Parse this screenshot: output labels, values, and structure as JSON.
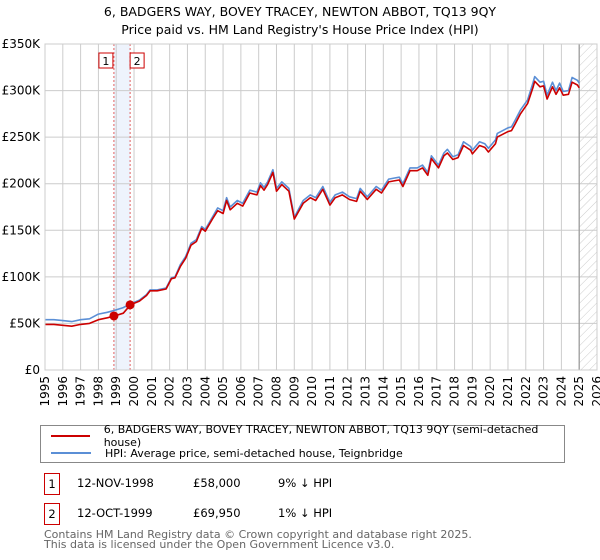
{
  "chart_data": {
    "type": "line",
    "title": "6, BADGERS WAY, BOVEY TRACEY, NEWTON ABBOT, TQ13 9QY",
    "subtitle": "Price paid vs. HM Land Registry's House Price Index (HPI)",
    "xlim": [
      1995,
      2026
    ],
    "ylim": [
      0,
      350000
    ],
    "yticks": [
      0,
      50000,
      100000,
      150000,
      200000,
      250000,
      300000,
      350000
    ],
    "ytick_labels": [
      "£0",
      "£50K",
      "£100K",
      "£150K",
      "£200K",
      "£250K",
      "£300K",
      "£350K"
    ],
    "xticks": [
      "1995",
      "1996",
      "1997",
      "1998",
      "1999",
      "2000",
      "2001",
      "2002",
      "2003",
      "2004",
      "2005",
      "2006",
      "2007",
      "2008",
      "2009",
      "2010",
      "2011",
      "2012",
      "2013",
      "2014",
      "2015",
      "2016",
      "2017",
      "2018",
      "2019",
      "2020",
      "2021",
      "2022",
      "2023",
      "2024",
      "2025",
      "2026"
    ],
    "grid": true,
    "forecast_hatch_from": 2025.0,
    "x": [
      1995.0,
      1995.5,
      1996.0,
      1996.5,
      1997.0,
      1997.5,
      1998.0,
      1998.5,
      1998.9,
      1999.4,
      1999.8,
      2000.3,
      2000.7,
      2000.9,
      2001.3,
      2001.8,
      2002.1,
      2002.3,
      2002.6,
      2002.9,
      2003.2,
      2003.5,
      2003.8,
      2004.0,
      2004.4,
      2004.7,
      2005.0,
      2005.2,
      2005.4,
      2005.8,
      2006.1,
      2006.5,
      2006.9,
      2007.1,
      2007.3,
      2007.5,
      2007.8,
      2008.0,
      2008.3,
      2008.7,
      2009.0,
      2009.5,
      2009.9,
      2010.2,
      2010.6,
      2011.0,
      2011.3,
      2011.7,
      2012.1,
      2012.5,
      2012.7,
      2013.1,
      2013.6,
      2013.9,
      2014.3,
      2014.6,
      2014.9,
      2015.1,
      2015.5,
      2015.9,
      2016.2,
      2016.5,
      2016.7,
      2017.1,
      2017.4,
      2017.6,
      2017.9,
      2018.2,
      2018.5,
      2018.9,
      2019.0,
      2019.4,
      2019.7,
      2019.9,
      2020.3,
      2020.4,
      2021.0,
      2021.2,
      2021.4,
      2021.7,
      2022.1,
      2022.4,
      2022.5,
      2022.8,
      2023.0,
      2023.2,
      2023.5,
      2023.7,
      2023.9,
      2024.1,
      2024.4,
      2024.6,
      2024.9,
      2025.0
    ],
    "series": [
      {
        "name": "6, BADGERS WAY, BOVEY TRACEY, NEWTON ABBOT, TQ13 9QY (semi-detached house)",
        "color": "#cc0000",
        "unit": "£K",
        "values": [
          49,
          49,
          48,
          47,
          49,
          50,
          54,
          56,
          58,
          61,
          70,
          74,
          80,
          85,
          85,
          87,
          98,
          99,
          111,
          120,
          134,
          138,
          152,
          149,
          162,
          171,
          168,
          182,
          172,
          179,
          176,
          190,
          188,
          198,
          193,
          199,
          212,
          192,
          199,
          192,
          162,
          179,
          185,
          182,
          194,
          177,
          185,
          188,
          183,
          181,
          192,
          183,
          194,
          190,
          202,
          203,
          204,
          197,
          214,
          214,
          217,
          209,
          227,
          217,
          230,
          233,
          226,
          228,
          241,
          236,
          232,
          241,
          239,
          234,
          243,
          250,
          256,
          257,
          264,
          275,
          286,
          303,
          310,
          304,
          305,
          291,
          304,
          296,
          303,
          295,
          296,
          309,
          306,
          303
        ]
      },
      {
        "name": "HPI: Average price, semi-detached house, Teignbridge",
        "color": "#5b8fd6",
        "unit": "£K",
        "values": [
          54,
          54,
          53,
          52,
          54,
          55,
          60,
          62,
          64,
          67,
          71,
          75,
          81,
          86,
          86,
          88,
          99,
          100,
          113,
          122,
          136,
          140,
          154,
          151,
          164,
          174,
          171,
          185,
          175,
          182,
          179,
          193,
          191,
          201,
          196,
          202,
          215,
          195,
          202,
          195,
          164,
          182,
          188,
          185,
          197,
          180,
          188,
          191,
          186,
          184,
          195,
          186,
          197,
          193,
          205,
          206,
          207,
          200,
          217,
          217,
          220,
          212,
          230,
          220,
          233,
          237,
          229,
          231,
          245,
          240,
          236,
          245,
          243,
          238,
          247,
          254,
          260,
          261,
          268,
          279,
          290,
          308,
          315,
          309,
          310,
          295,
          309,
          300,
          308,
          299,
          300,
          314,
          311,
          308
        ]
      }
    ],
    "sales": [
      {
        "id": "1",
        "x": 1998.87,
        "price": 58000
      },
      {
        "id": "2",
        "x": 1999.78,
        "price": 69950
      }
    ]
  },
  "header": {
    "title": "6, BADGERS WAY, BOVEY TRACEY, NEWTON ABBOT, TQ13 9QY",
    "subtitle": "Price paid vs. HM Land Registry's House Price Index (HPI)"
  },
  "legend": {
    "property": "6, BADGERS WAY, BOVEY TRACEY, NEWTON ABBOT, TQ13 9QY (semi-detached house)",
    "hpi": "HPI: Average price, semi-detached house, Teignbridge"
  },
  "transactions": [
    {
      "num": "1",
      "date": "12-NOV-1998",
      "price": "£58,000",
      "hpi": "9% ↓ HPI"
    },
    {
      "num": "2",
      "date": "12-OCT-1999",
      "price": "£69,950",
      "hpi": "1% ↓ HPI"
    }
  ],
  "footer": {
    "line1": "Contains HM Land Registry data © Crown copyright and database right 2025.",
    "line2": "This data is licensed under the Open Government Licence v3.0."
  }
}
